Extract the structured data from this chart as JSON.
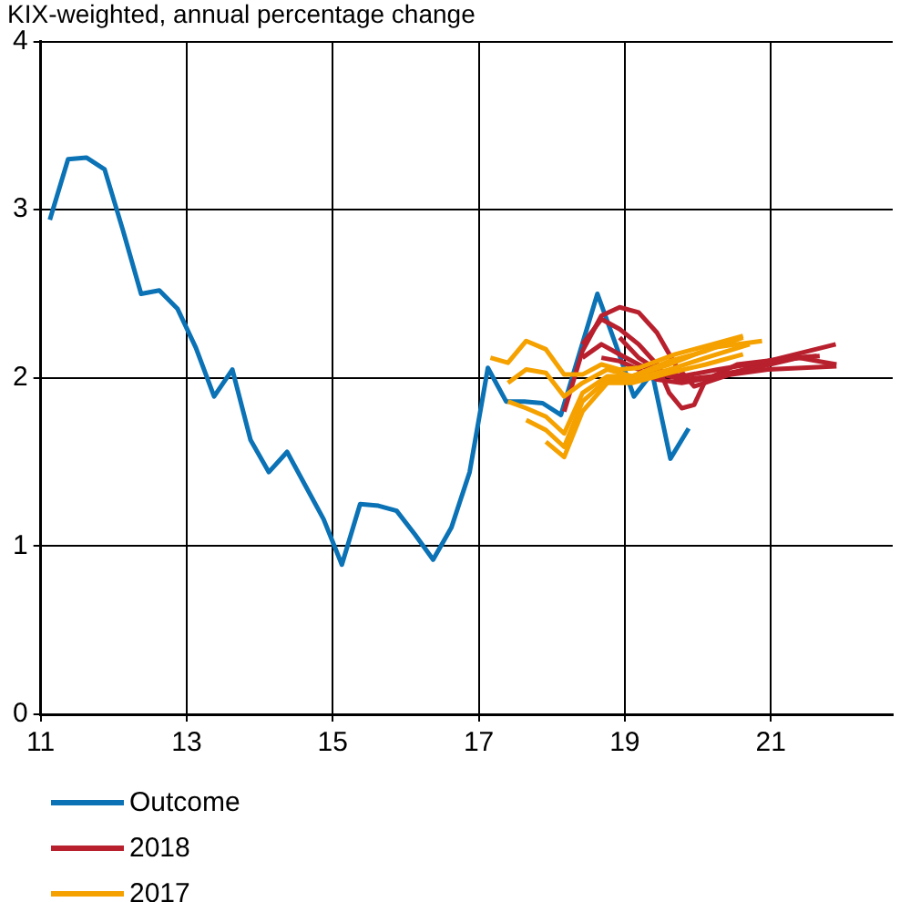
{
  "chart_data": {
    "type": "line",
    "title": "KIX-weighted, annual percentage change",
    "xlim": [
      11,
      22.67
    ],
    "xticks": [
      11,
      13,
      15,
      17,
      19,
      21
    ],
    "ylim": [
      0,
      4
    ],
    "yticks": [
      0,
      1,
      2,
      3,
      4
    ],
    "grid": true,
    "legend": "bottom left",
    "marker": "none",
    "line_style": "solid",
    "series": [
      {
        "name": "Outcome",
        "color": "#0a72b5",
        "x": [
          11.125,
          11.375,
          11.625,
          11.875,
          12.125,
          12.375,
          12.625,
          12.875,
          13.125,
          13.375,
          13.625,
          13.875,
          14.125,
          14.375,
          14.625,
          14.875,
          15.125,
          15.375,
          15.625,
          15.875,
          16.125,
          16.375,
          16.625,
          16.875,
          17.125,
          17.375,
          17.625,
          17.875,
          18.125,
          18.375,
          18.625,
          18.875,
          19.125,
          19.375,
          19.625,
          19.875
        ],
        "values": [
          2.94,
          3.3,
          3.31,
          3.24,
          2.88,
          2.5,
          2.52,
          2.41,
          2.18,
          1.89,
          2.05,
          1.63,
          1.44,
          1.56,
          1.36,
          1.16,
          0.89,
          1.25,
          1.24,
          1.21,
          1.07,
          0.92,
          1.11,
          1.44,
          2.06,
          1.86,
          1.86,
          1.85,
          1.78,
          2.14,
          2.5,
          2.2,
          1.89,
          2.03,
          1.52,
          1.7
        ]
      },
      {
        "name": "2018",
        "color": "#b8202e",
        "x": [
          18.17,
          18.42,
          18.68,
          18.93,
          19.19,
          19.44,
          19.69,
          19.95,
          20.37,
          20.96,
          21.89
        ],
        "values": [
          1.8,
          2.16,
          2.37,
          2.42,
          2.39,
          2.27,
          2.08,
          1.95,
          2.01,
          2.1,
          2.2
        ]
      },
      {
        "color": "#b8202e",
        "x": [
          18.42,
          18.68,
          18.93,
          19.19,
          19.44,
          19.61,
          19.78,
          19.95,
          20.11,
          20.54,
          21.3,
          21.63
        ],
        "values": [
          2.2,
          2.35,
          2.29,
          2.2,
          2.08,
          1.91,
          1.82,
          1.84,
          1.99,
          2.08,
          2.12,
          2.13
        ]
      },
      {
        "color": "#b8202e",
        "x": [
          18.42,
          18.68,
          18.93,
          19.19,
          19.44,
          19.78,
          20.2,
          20.79,
          21.38,
          21.9
        ],
        "values": [
          2.12,
          2.2,
          2.14,
          2.08,
          2.03,
          1.99,
          2.01,
          2.06,
          2.12,
          2.08
        ]
      },
      {
        "color": "#b8202e",
        "x": [
          18.68,
          18.93,
          19.19,
          19.44,
          19.78,
          20.28,
          20.96,
          21.9
        ],
        "values": [
          2.12,
          2.1,
          2.05,
          1.99,
          1.97,
          2.01,
          2.05,
          2.07
        ]
      },
      {
        "color": "#b8202e",
        "x": [
          18.93,
          19.19,
          19.44,
          19.78,
          20.28,
          20.96,
          21.67
        ],
        "values": [
          2.24,
          2.12,
          2.05,
          2.01,
          2.05,
          2.1,
          2.13
        ]
      },
      {
        "name": "2017",
        "color": "#f5a100",
        "x": [
          17.16,
          17.4,
          17.65,
          17.92,
          18.17,
          18.42,
          18.68,
          18.93,
          19.19,
          19.69,
          20.2,
          20.62
        ],
        "values": [
          2.12,
          2.09,
          2.22,
          2.17,
          2.02,
          2.02,
          2.08,
          2.05,
          2.06,
          2.14,
          2.2,
          2.25
        ]
      },
      {
        "color": "#f5a100",
        "x": [
          17.4,
          17.65,
          17.92,
          18.17,
          18.42,
          18.76,
          19.1,
          19.61,
          20.11,
          20.62
        ],
        "values": [
          1.97,
          2.05,
          2.03,
          1.89,
          1.97,
          2.05,
          2.01,
          2.1,
          2.16,
          2.24
        ]
      },
      {
        "color": "#f5a100",
        "x": [
          17.4,
          17.65,
          17.92,
          18.17,
          18.42,
          18.76,
          19.1,
          19.61,
          20.2,
          20.88
        ],
        "values": [
          1.86,
          1.82,
          1.77,
          1.67,
          1.91,
          2.01,
          2.01,
          2.08,
          2.18,
          2.22
        ]
      },
      {
        "color": "#f5a100",
        "x": [
          17.65,
          17.92,
          18.17,
          18.42,
          18.76,
          19.1,
          19.61,
          20.11,
          20.71
        ],
        "values": [
          1.75,
          1.69,
          1.59,
          1.86,
          1.99,
          1.99,
          2.05,
          2.12,
          2.2
        ]
      },
      {
        "color": "#f5a100",
        "x": [
          17.92,
          18.17,
          18.42,
          18.76,
          19.1,
          19.61,
          20.11,
          20.62
        ],
        "values": [
          1.62,
          1.53,
          1.8,
          1.97,
          1.97,
          2.03,
          2.08,
          2.14
        ]
      }
    ]
  }
}
